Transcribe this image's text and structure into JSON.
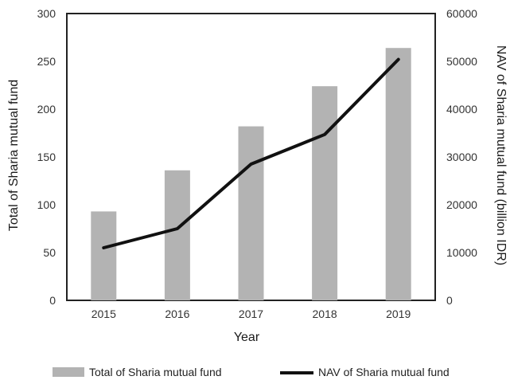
{
  "chart_data": {
    "type": "bar",
    "categories": [
      "2015",
      "2016",
      "2017",
      "2018",
      "2019"
    ],
    "xlabel": "Year",
    "series": [
      {
        "name": "Total of Sharia mutual fund",
        "type": "bar",
        "axis": "left",
        "color": "#b3b3b3",
        "values": [
          93,
          136,
          182,
          224,
          264
        ]
      },
      {
        "name": "NAV of Sharia mutual fund",
        "type": "line",
        "axis": "right",
        "color": "#111111",
        "values": [
          11000,
          15000,
          28500,
          34700,
          50400
        ]
      }
    ],
    "y_left": {
      "label": "Total of Sharia mutual fund",
      "lim": [
        0,
        300
      ],
      "ticks": [
        "0",
        "50",
        "100",
        "150",
        "200",
        "250",
        "300"
      ]
    },
    "y_right": {
      "label": "NAV of Sharia mutual fund (billion IDR)",
      "lim": [
        0,
        60000
      ],
      "ticks": [
        "0",
        "10000",
        "20000",
        "30000",
        "40000",
        "50000",
        "60000"
      ]
    },
    "grid": false,
    "legend_position": "bottom"
  }
}
